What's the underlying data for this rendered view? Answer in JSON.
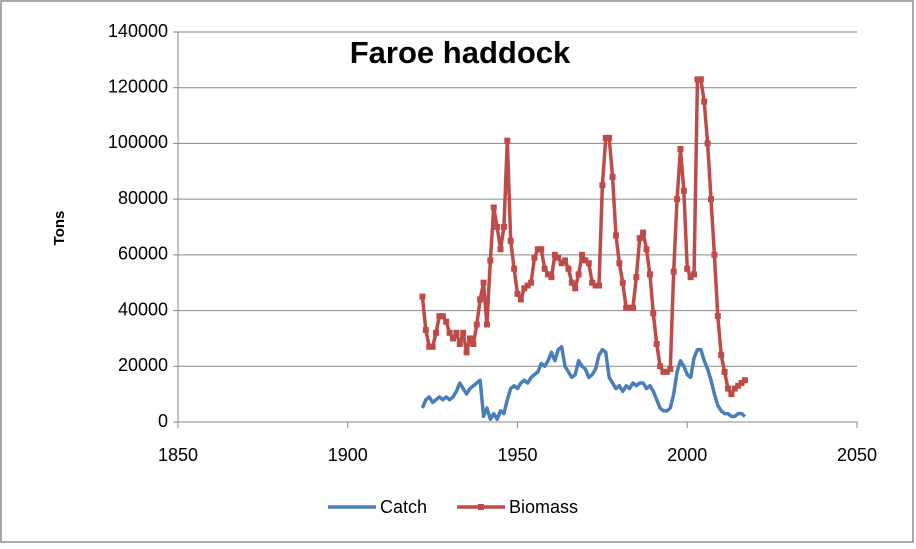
{
  "chart_data": {
    "type": "line",
    "title": "Faroe haddock",
    "y_label": "Tons",
    "x": [
      1922,
      1923,
      1924,
      1925,
      1926,
      1927,
      1928,
      1929,
      1930,
      1931,
      1932,
      1933,
      1934,
      1935,
      1936,
      1937,
      1938,
      1939,
      1940,
      1941,
      1942,
      1943,
      1944,
      1945,
      1946,
      1947,
      1948,
      1949,
      1950,
      1951,
      1952,
      1953,
      1954,
      1955,
      1956,
      1957,
      1958,
      1959,
      1960,
      1961,
      1962,
      1963,
      1964,
      1965,
      1966,
      1967,
      1968,
      1969,
      1970,
      1971,
      1972,
      1973,
      1974,
      1975,
      1976,
      1977,
      1978,
      1979,
      1980,
      1981,
      1982,
      1983,
      1984,
      1985,
      1986,
      1987,
      1988,
      1989,
      1990,
      1991,
      1992,
      1993,
      1994,
      1995,
      1996,
      1997,
      1998,
      1999,
      2000,
      2001,
      2002,
      2003,
      2004,
      2005,
      2006,
      2007,
      2008,
      2009,
      2010,
      2011,
      2012,
      2013,
      2014,
      2015,
      2016,
      2017
    ],
    "series": [
      {
        "name": "Catch",
        "color": "#4a7ebb",
        "marker": false,
        "values": [
          5000,
          8000,
          9000,
          7000,
          8000,
          9000,
          8000,
          9000,
          8000,
          9000,
          11000,
          14000,
          12000,
          10000,
          12000,
          13000,
          14000,
          15000,
          2000,
          5000,
          1000,
          3000,
          1000,
          4000,
          3000,
          8000,
          12000,
          13000,
          12000,
          14000,
          15000,
          14000,
          16000,
          17000,
          18000,
          21000,
          20000,
          22000,
          25000,
          22000,
          26000,
          27000,
          20000,
          18000,
          16000,
          17000,
          22000,
          20000,
          19000,
          16000,
          17000,
          19000,
          24000,
          26000,
          25000,
          16000,
          14000,
          12000,
          13000,
          11000,
          13000,
          12000,
          14000,
          13000,
          14000,
          14000,
          12000,
          13000,
          11000,
          8000,
          5000,
          4000,
          4000,
          5000,
          10000,
          18000,
          22000,
          20000,
          17000,
          16000,
          23000,
          26000,
          26000,
          22000,
          19000,
          15000,
          10000,
          6000,
          4000,
          3000,
          3000,
          2000,
          2000,
          3000,
          3000,
          2000
        ]
      },
      {
        "name": "Biomass",
        "color": "#be4b48",
        "marker": true,
        "values": [
          45000,
          33000,
          27000,
          27000,
          32000,
          38000,
          38000,
          36000,
          32000,
          30000,
          32000,
          28000,
          32000,
          25000,
          30000,
          28000,
          35000,
          44000,
          50000,
          35000,
          58000,
          77000,
          70000,
          62000,
          70000,
          101000,
          65000,
          55000,
          46000,
          44000,
          48000,
          49000,
          50000,
          59000,
          62000,
          62000,
          55000,
          53000,
          52000,
          60000,
          59000,
          57000,
          58000,
          55000,
          50000,
          48000,
          53000,
          60000,
          58000,
          57000,
          50000,
          49000,
          49000,
          85000,
          102000,
          102000,
          88000,
          67000,
          57000,
          50000,
          41000,
          41000,
          41000,
          52000,
          66000,
          68000,
          62000,
          53000,
          39000,
          28000,
          20000,
          18000,
          18000,
          19000,
          54000,
          80000,
          98000,
          83000,
          55000,
          52000,
          53000,
          123000,
          123000,
          115000,
          100000,
          80000,
          60000,
          38000,
          24000,
          18000,
          12000,
          10000,
          12000,
          13000,
          14000,
          15000
        ]
      }
    ],
    "xlim": [
      1850,
      2050
    ],
    "xticks": [
      1850,
      1900,
      1950,
      2000,
      2050
    ],
    "ylim": [
      0,
      140000
    ],
    "yticks": [
      0,
      20000,
      40000,
      60000,
      80000,
      100000,
      120000,
      140000
    ],
    "grid": true,
    "legend": "bottom"
  }
}
